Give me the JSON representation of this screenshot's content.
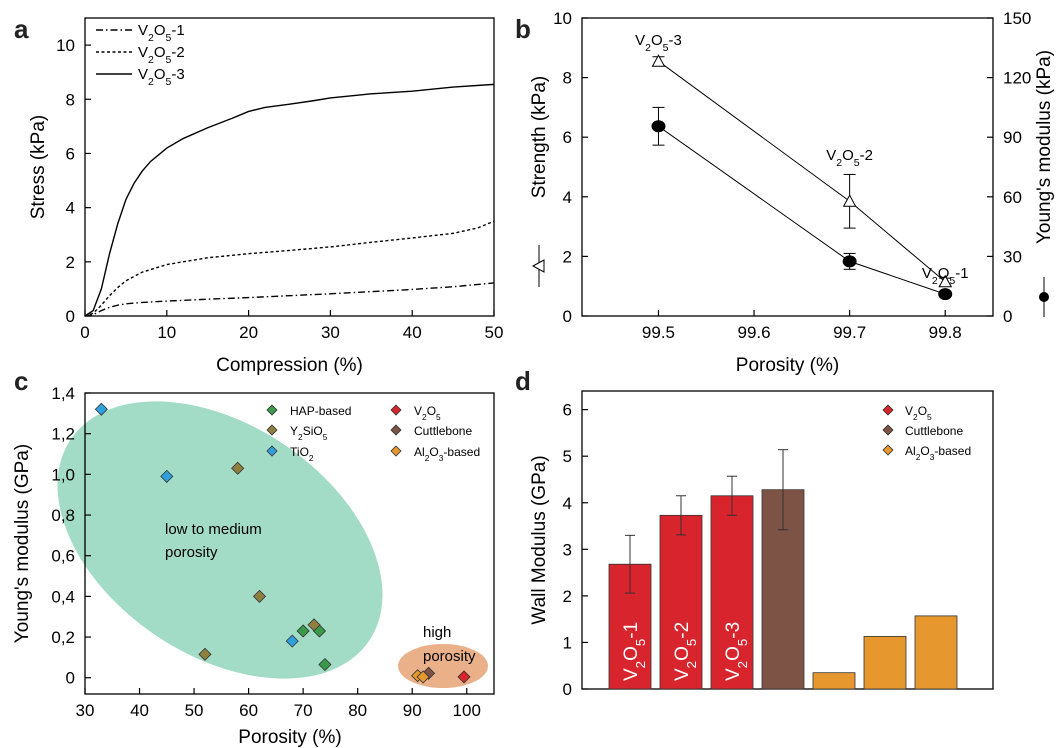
{
  "chart_data": [
    {
      "panel": "a",
      "type": "line",
      "xlabel": "Compression (%)",
      "ylabel": "Stress (kPa)",
      "xlim": [
        0,
        50
      ],
      "ylim": [
        0,
        11
      ],
      "xticks": [
        0,
        10,
        20,
        30,
        40,
        50
      ],
      "yticks": [
        0,
        2,
        4,
        6,
        8,
        10
      ],
      "legend_position": "top-left",
      "series": [
        {
          "name": "V2O5-1",
          "style": "dashdot",
          "x": [
            0,
            1,
            2,
            3,
            4,
            5,
            7,
            10,
            15,
            20,
            25,
            30,
            35,
            40,
            45,
            50
          ],
          "y": [
            0,
            0.05,
            0.2,
            0.32,
            0.4,
            0.45,
            0.5,
            0.55,
            0.62,
            0.68,
            0.75,
            0.82,
            0.9,
            0.98,
            1.08,
            1.22
          ]
        },
        {
          "name": "V2O5-2",
          "style": "dashed",
          "x": [
            0,
            1,
            2,
            3,
            4,
            5,
            7,
            10,
            15,
            20,
            25,
            30,
            35,
            40,
            45,
            48,
            50
          ],
          "y": [
            0,
            0.1,
            0.4,
            0.75,
            1.05,
            1.3,
            1.62,
            1.9,
            2.15,
            2.3,
            2.42,
            2.55,
            2.72,
            2.88,
            3.05,
            3.25,
            3.5
          ]
        },
        {
          "name": "V2O5-3",
          "style": "solid",
          "x": [
            0,
            1,
            2,
            3,
            4,
            5,
            6,
            7,
            8,
            10,
            12,
            15,
            18,
            20,
            22,
            25,
            28,
            30,
            35,
            40,
            45,
            50
          ],
          "y": [
            0,
            0.2,
            1.0,
            2.3,
            3.4,
            4.3,
            4.9,
            5.35,
            5.7,
            6.2,
            6.55,
            6.95,
            7.3,
            7.55,
            7.7,
            7.82,
            7.95,
            8.05,
            8.2,
            8.3,
            8.45,
            8.55
          ]
        }
      ]
    },
    {
      "panel": "b",
      "type": "line",
      "xlabel": "Porosity (%)",
      "ylabel_left": "Strength (kPa)",
      "ylabel_right": "Young's modulus (kPa)",
      "xlim": [
        99.42,
        99.85
      ],
      "ylim_left": [
        0,
        10
      ],
      "ylim_right": [
        0,
        150
      ],
      "xticks": [
        99.5,
        99.6,
        99.7,
        99.8
      ],
      "yticks_left": [
        0,
        2,
        4,
        6,
        8,
        10
      ],
      "yticks_right": [
        0,
        30,
        60,
        90,
        120,
        150
      ],
      "series": [
        {
          "name": "Strength",
          "axis": "left",
          "marker": "open-triangle",
          "x": [
            99.5,
            99.7,
            99.8
          ],
          "y": [
            8.55,
            3.85,
            1.15
          ],
          "err": [
            0.15,
            0.9,
            0.12
          ]
        },
        {
          "name": "Young's modulus",
          "axis": "right",
          "marker": "filled-circle",
          "x": [
            99.5,
            99.7,
            99.8
          ],
          "y": [
            95.5,
            27.5,
            11
          ],
          "err": [
            9.5,
            4,
            1
          ]
        }
      ],
      "annotations": [
        {
          "text": "V2O5-3",
          "x": 99.5
        },
        {
          "text": "V2O5-2",
          "x": 99.7
        },
        {
          "text": "V2O5-1",
          "x": 99.8
        }
      ]
    },
    {
      "panel": "c",
      "type": "scatter",
      "xlabel": "Porosity (%)",
      "ylabel": "Young's modulus (GPa)",
      "xlim": [
        30,
        105
      ],
      "ylim": [
        -0.08,
        1.4
      ],
      "xticks": [
        30,
        40,
        50,
        60,
        70,
        80,
        90,
        100
      ],
      "yticks": [
        0,
        0.2,
        0.4,
        0.6,
        0.8,
        1.0,
        1.2,
        1.4
      ],
      "ytick_labels": [
        "0",
        "0,2",
        "0,4",
        "0,6",
        "0,8",
        "1,0",
        "1,2",
        "1,4"
      ],
      "legend_position": "top-right",
      "series": [
        {
          "name": "HAP-based",
          "color": "#3a9a4a",
          "x": [
            70,
            73,
            74
          ],
          "y": [
            0.23,
            0.23,
            0.065
          ]
        },
        {
          "name": "Y2SiO5",
          "color": "#8f8040",
          "x": [
            58,
            62,
            52,
            72
          ],
          "y": [
            1.03,
            0.4,
            0.115,
            0.26
          ]
        },
        {
          "name": "TiO2",
          "color": "#30a0dc",
          "x": [
            33,
            45,
            68
          ],
          "y": [
            1.32,
            0.99,
            0.18
          ]
        },
        {
          "name": "V2O5",
          "color": "#d8242c",
          "x": [
            99.5
          ],
          "y": [
            0.004
          ]
        },
        {
          "name": "Cuttlebone",
          "color": "#7d5345",
          "x": [
            93
          ],
          "y": [
            0.022
          ]
        },
        {
          "name": "Al2O3-based",
          "color": "#e6982e",
          "x": [
            91,
            92
          ],
          "y": [
            0.01,
            0.004
          ]
        }
      ],
      "annotations": [
        "low to medium",
        "porosity",
        "high",
        "porosity"
      ]
    },
    {
      "panel": "d",
      "type": "bar",
      "ylabel": "Wall Modulus (GPa)",
      "ylim": [
        0,
        6.4
      ],
      "yticks": [
        0,
        1,
        2,
        3,
        4,
        5,
        6
      ],
      "legend_position": "top-right",
      "bar_labels": [
        "V2O5-1",
        "V2O5-2",
        "V2O5-3",
        "",
        "",
        "",
        ""
      ],
      "values": [
        2.68,
        3.73,
        4.15,
        4.28,
        0.35,
        1.13,
        1.57
      ],
      "errors": [
        0.62,
        0.42,
        0.42,
        0.86,
        0,
        0,
        0
      ],
      "groups": [
        "V2O5",
        "V2O5",
        "V2O5",
        "Cuttlebone",
        "Al2O3-based",
        "Al2O3-based",
        "Al2O3-based"
      ],
      "legend": [
        {
          "name": "V2O5",
          "color": "#d8242c"
        },
        {
          "name": "Cuttlebone",
          "color": "#7d5345"
        },
        {
          "name": "Al2O3-based",
          "color": "#e6982e"
        }
      ]
    }
  ],
  "panel_labels": [
    "a",
    "b",
    "c",
    "d"
  ]
}
